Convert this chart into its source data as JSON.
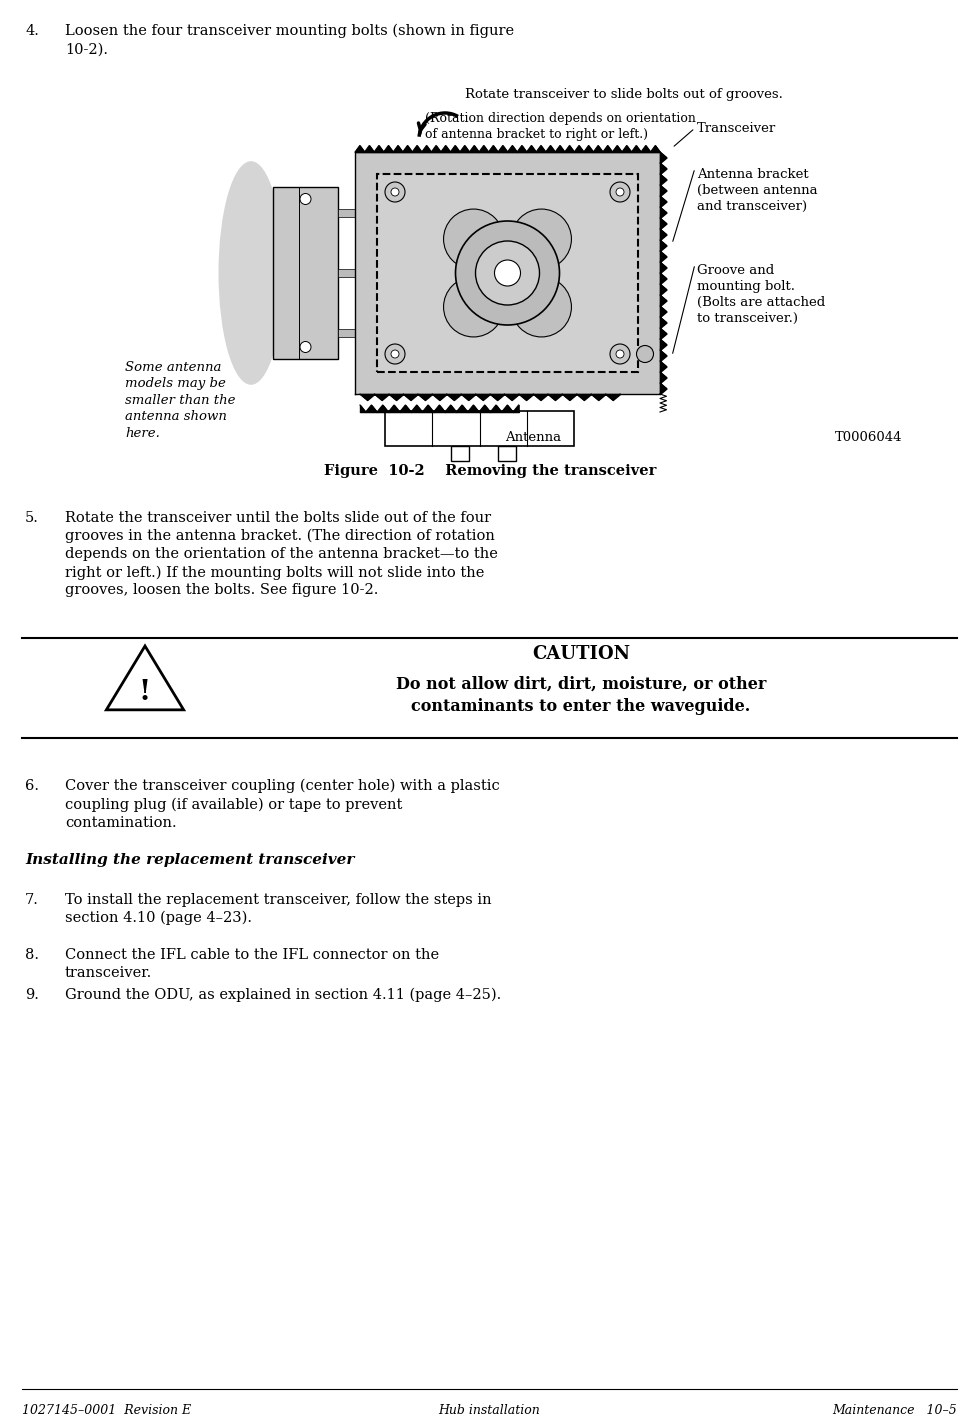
{
  "bg_color": "#ffffff",
  "text_color": "#000000",
  "page_width": 9.77,
  "page_height": 14.26,
  "footer_left": "1027145–0001  Revision E",
  "footer_center": "Hub installation",
  "footer_right": "Maintenance   10–5",
  "fig_rotate_label": "Rotate transceiver to slide bolts out of grooves.",
  "fig_rotation_sub": "(Rotation direction depends on orientation\nof antenna bracket to right or left.)",
  "fig_transceiver_label": "Transceiver",
  "fig_antenna_bracket_label": "Antenna bracket\n(between antenna\nand transceiver)",
  "fig_groove_label": "Groove and\nmounting bolt.\n(Bolts are attached\nto transceiver.)",
  "fig_antenna_label": "Antenna",
  "fig_code": "T0006044",
  "fig_note": "Some antenna\nmodels may be\nsmaller than the\nantenna shown\nhere.",
  "figure_caption": "Figure  10-2    Removing the transceiver",
  "caution_title": "CAUTION",
  "caution_text": "Do not allow dirt, dirt, moisture, or other\ncontaminants to enter the waveguide.",
  "item4_line1": "4.",
  "item4_text": "Loosen the four transceiver mounting bolts (shown in figure\n10-2).",
  "item5_line1": "5.",
  "item5_text": "Rotate the transceiver until the bolts slide out of the four\ngrooves in the antenna bracket. (The direction of rotation\ndepends on the orientation of the antenna bracket—to the\nright or left.) If the mounting bolts will not slide into the\ngrooves, loosen the bolts. See figure 10-2.",
  "item6_line1": "6.",
  "item6_text": "Cover the transceiver coupling (center hole) with a plastic\ncoupling plug (if available) or tape to prevent\ncontamination.",
  "section_header": "Installing the replacement transceiver",
  "item7_line1": "7.",
  "item7_text": "To install the replacement transceiver, follow the steps in\nsection 4.10 (page 4–23).",
  "item8_line1": "8.",
  "item8_text": "Connect the IFL cable to the IFL connector on the\ntransceiver.",
  "item9_line1": "9.",
  "item9_text": "Ground the ODU, as explained in section 4.11 (page 4–25)."
}
